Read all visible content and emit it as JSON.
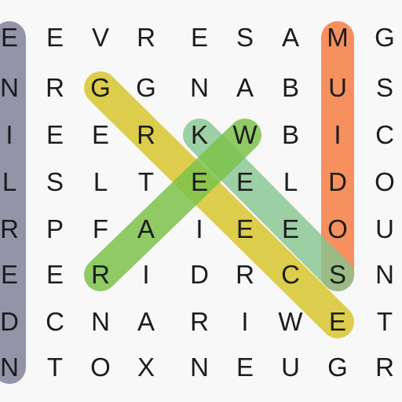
{
  "grid": {
    "rows": [
      [
        "E",
        "E",
        "V",
        "R",
        "E",
        "S",
        "A",
        "M",
        "G"
      ],
      [
        "N",
        "R",
        "G",
        "G",
        "N",
        "A",
        "B",
        "U",
        "S"
      ],
      [
        "I",
        "E",
        "E",
        "R",
        "K",
        "W",
        "B",
        "I",
        "C"
      ],
      [
        "L",
        "S",
        "L",
        "T",
        "E",
        "E",
        "L",
        "D",
        "O"
      ],
      [
        "R",
        "P",
        "F",
        "A",
        "I",
        "E",
        "E",
        "O",
        "U"
      ],
      [
        "E",
        "E",
        "R",
        "I",
        "D",
        "R",
        "C",
        "S",
        "N"
      ],
      [
        "D",
        "C",
        "N",
        "A",
        "R",
        "I",
        "W",
        "E",
        "T"
      ],
      [
        "N",
        "T",
        "O",
        "X",
        "N",
        "E",
        "U",
        "G",
        "R"
      ]
    ]
  },
  "found_words": [
    {
      "color": "#8e8ea4",
      "opacity": 0.95,
      "start": [
        0,
        0
      ],
      "end": [
        7,
        0
      ]
    },
    {
      "color": "#f58a55",
      "opacity": 0.95,
      "start": [
        0,
        7
      ],
      "end": [
        5,
        7
      ]
    },
    {
      "color": "#d8c62e",
      "opacity": 0.85,
      "start": [
        1,
        2
      ],
      "end": [
        6,
        7
      ]
    },
    {
      "color": "#85c48f",
      "opacity": 0.8,
      "start": [
        2,
        4
      ],
      "end": [
        5,
        7
      ]
    },
    {
      "color": "#7cc24b",
      "opacity": 0.85,
      "start": [
        2,
        5
      ],
      "end": [
        5,
        2
      ]
    }
  ]
}
